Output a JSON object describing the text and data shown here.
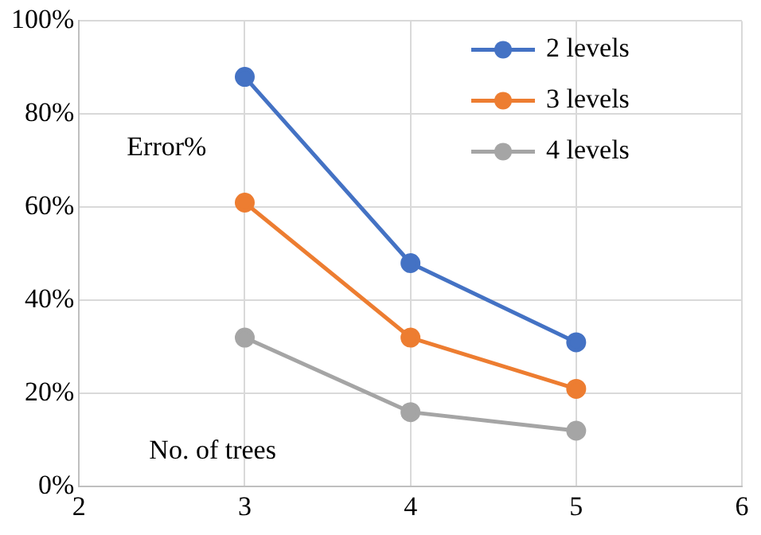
{
  "chart_data": {
    "type": "line",
    "xlabel": "No. of trees",
    "ylabel": "Error%",
    "x": [
      3,
      4,
      5
    ],
    "series": [
      {
        "name": "2 levels",
        "color": "#4472c4",
        "values": [
          88,
          48,
          31
        ]
      },
      {
        "name": "3 levels",
        "color": "#ed7d31",
        "values": [
          61,
          32,
          21
        ]
      },
      {
        "name": "4 levels",
        "color": "#a5a5a5",
        "values": [
          32,
          16,
          12
        ]
      }
    ],
    "xlim": [
      2,
      6
    ],
    "xticks": [
      2,
      3,
      4,
      5,
      6
    ],
    "ylim": [
      0,
      100
    ],
    "yticks": [
      {
        "value": 0,
        "label": "0%"
      },
      {
        "value": 20,
        "label": "20%"
      },
      {
        "value": 40,
        "label": "40%"
      },
      {
        "value": 60,
        "label": "60%"
      },
      {
        "value": 80,
        "label": "80%"
      },
      {
        "value": 100,
        "label": "100%"
      }
    ],
    "grid": true,
    "legend": "top right",
    "marker": "circle",
    "line_style": "solid"
  }
}
